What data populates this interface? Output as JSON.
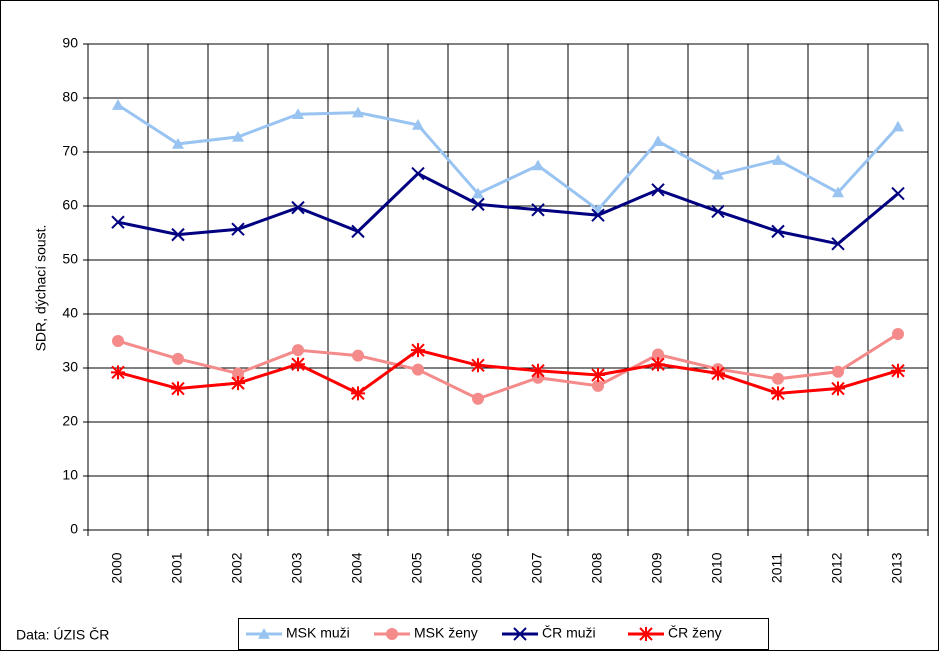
{
  "chart_data": {
    "type": "line",
    "y_label": "SDR, dýchací soust.",
    "source": "Data: ÚZIS ČR",
    "categories": [
      "2000",
      "2001",
      "2002",
      "2003",
      "2004",
      "2005",
      "2006",
      "2007",
      "2008",
      "2009",
      "2010",
      "2011",
      "2012",
      "2013"
    ],
    "series": [
      {
        "name": "MSK muži",
        "color": "#99c4f2",
        "marker": "triangle",
        "values": [
          78.7,
          71.5,
          72.8,
          77.0,
          77.3,
          75.0,
          62.3,
          67.5,
          59.3,
          72.0,
          65.8,
          68.5,
          62.5,
          74.7
        ]
      },
      {
        "name": "MSK ženy",
        "color": "#f48a8a",
        "marker": "circle",
        "values": [
          35.0,
          31.7,
          29.0,
          33.3,
          32.3,
          29.7,
          24.3,
          28.2,
          26.7,
          32.5,
          29.8,
          28.0,
          29.3,
          36.3
        ]
      },
      {
        "name": "ČR muži",
        "color": "#000080",
        "marker": "x",
        "values": [
          57.0,
          54.7,
          55.7,
          59.7,
          55.3,
          66.0,
          60.3,
          59.3,
          58.3,
          63.0,
          59.0,
          55.3,
          53.0,
          62.3
        ]
      },
      {
        "name": "ČR ženy",
        "color": "#ff0000",
        "marker": "star",
        "values": [
          29.2,
          26.2,
          27.2,
          30.7,
          25.3,
          33.3,
          30.5,
          29.5,
          28.7,
          30.7,
          29.0,
          25.3,
          26.2,
          29.5
        ]
      }
    ],
    "ylim": [
      0,
      90
    ],
    "yticks": [
      0,
      10,
      20,
      30,
      40,
      50,
      60,
      70,
      80,
      90
    ],
    "grid": true
  }
}
